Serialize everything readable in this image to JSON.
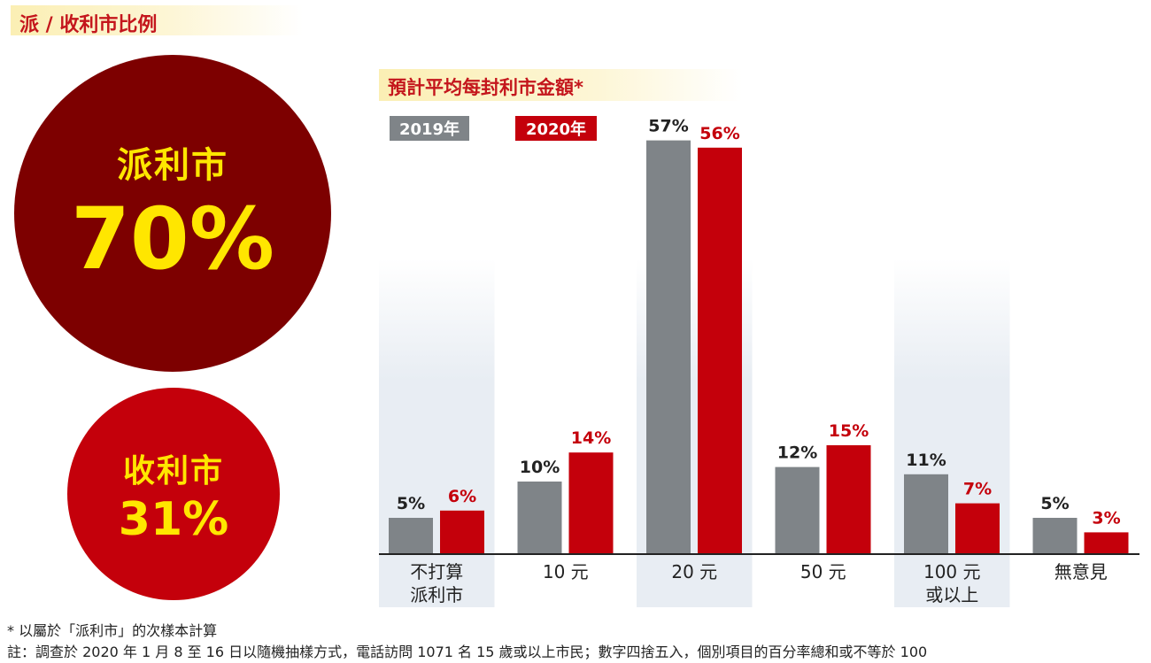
{
  "section_title": "派 / 收利市比例",
  "give": {
    "label": "派利市",
    "value": "70%"
  },
  "receive": {
    "label": "收利市",
    "value": "31%"
  },
  "colors": {
    "series_2019": "#7f8488",
    "series_2020": "#c4000b",
    "title_red": "#c4161c",
    "circle_dark": "#7d0000",
    "circle_text": "#ffe600"
  },
  "chart_data": {
    "type": "bar",
    "title": "預計平均每封利市金額*",
    "categories": [
      [
        "不打算",
        "派利市"
      ],
      [
        "10 元"
      ],
      [
        "20 元"
      ],
      [
        "50 元"
      ],
      [
        "100 元",
        "或以上"
      ],
      [
        "無意見"
      ]
    ],
    "series": [
      {
        "name": "2019年",
        "values": [
          5,
          10,
          57,
          12,
          11,
          5
        ]
      },
      {
        "name": "2020年",
        "values": [
          6,
          14,
          56,
          15,
          7,
          3
        ]
      }
    ],
    "value_suffix": "%",
    "legend_position": "top-left",
    "grid": false
  },
  "footnotes": [
    "* 以屬於「派利市」的次樣本計算",
    "註：調查於 2020 年 1 月 8 至 16 日以隨機抽樣方式，電話訪問 1071 名 15 歲或以上市民；數字四捨五入，個別項目的百分率總和或不等於 100"
  ]
}
